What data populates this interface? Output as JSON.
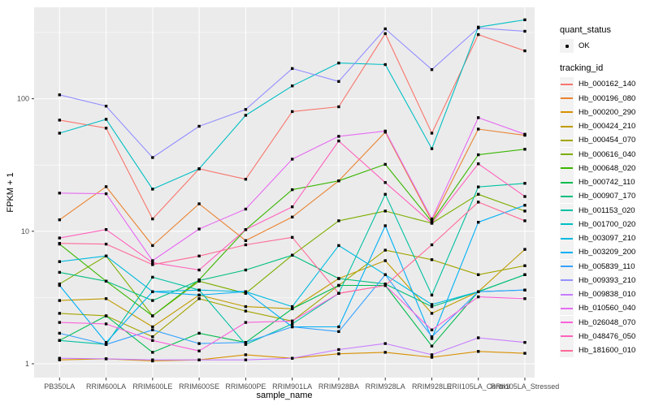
{
  "figure": {
    "background": "#FFFFFF"
  },
  "style": {
    "panel_bg": "#EBEBEB",
    "grid_color": "#FFFFFF",
    "axis_text_color": "#4D4D4D",
    "tick_color": "#333333",
    "legend_key_bg": "#F2F2F2",
    "point_color": "#000000"
  },
  "legend": {
    "quant_status": {
      "title": "quant_status",
      "items": [
        {
          "label": "OK",
          "symbol": "black-point"
        }
      ]
    },
    "tracking_id": {
      "title": "tracking_id"
    }
  },
  "chart_data": {
    "type": "line",
    "title": "",
    "xlabel": "sample_name",
    "ylabel": "FPKM + 1",
    "x_type": "categorical",
    "y_scale": "log10",
    "y_ticks": [
      1,
      10,
      100
    ],
    "y_minor_ticks": [
      3.1623,
      31.623,
      316.23
    ],
    "ylim": [
      0.82,
      490
    ],
    "grid": "on",
    "legend_position": "right",
    "point_shape": "filled-square",
    "point_color": "#000000",
    "categories": [
      "PB350LA",
      "RRIM600LA",
      "RRIM600LE",
      "RRIM600SE",
      "RRIM600PE",
      "RRIM901LA",
      "RRIM928BA",
      "RRIM928LA",
      "RRIM928LE",
      "RRII105LA_Control",
      "RRII105LA_Stressed"
    ],
    "series": [
      {
        "name": "Hb_000162_140",
        "color": "#F8766D",
        "values": [
          69,
          60,
          12.4,
          29.6,
          24.7,
          80,
          87,
          310,
          55,
          305,
          230
        ]
      },
      {
        "name": "Hb_000196_080",
        "color": "#EA8331",
        "values": [
          12.2,
          21.7,
          7.8,
          16.1,
          8.5,
          12.8,
          24,
          56,
          12,
          59,
          53
        ]
      },
      {
        "name": "Hb_000200_290",
        "color": "#D89000",
        "values": [
          1.07,
          1.09,
          1.05,
          1.07,
          1.17,
          1.1,
          1.19,
          1.22,
          1.12,
          1.24,
          1.2
        ]
      },
      {
        "name": "Hb_000424_210",
        "color": "#C09B00",
        "values": [
          3.0,
          3.1,
          1.9,
          3.3,
          2.7,
          2.6,
          4.4,
          6.0,
          2.4,
          3.5,
          7.3
        ]
      },
      {
        "name": "Hb_000454_070",
        "color": "#A3A500",
        "values": [
          2.4,
          2.3,
          1.6,
          3.1,
          2.5,
          2.1,
          3.9,
          7.2,
          6.1,
          4.7,
          5.5
        ]
      },
      {
        "name": "Hb_000616_040",
        "color": "#7CAE00",
        "values": [
          4.0,
          6.5,
          2.3,
          4.2,
          3.4,
          6.6,
          12,
          14.2,
          11.5,
          19,
          14.2
        ]
      },
      {
        "name": "Hb_000648_020",
        "color": "#39B600",
        "values": [
          8.0,
          4.2,
          2.3,
          4.3,
          10.3,
          20.6,
          24,
          32,
          11.8,
          37.8,
          41.6
        ]
      },
      {
        "name": "Hb_000742_110",
        "color": "#00BB4E",
        "values": [
          1.5,
          2.3,
          1.22,
          1.7,
          1.45,
          2.6,
          3.9,
          3.9,
          1.36,
          3.5,
          4.7
        ]
      },
      {
        "name": "Hb_000907_170",
        "color": "#00BF7D",
        "values": [
          4.9,
          4.2,
          3.0,
          4.25,
          5.1,
          6.6,
          4.4,
          4.0,
          2.7,
          3.5,
          4.7
        ]
      },
      {
        "name": "Hb_001153_020",
        "color": "#00C1A3",
        "values": [
          1.5,
          1.4,
          4.5,
          3.6,
          1.4,
          2.0,
          3.4,
          19,
          3.3,
          21.6,
          23
        ]
      },
      {
        "name": "Hb_001700_020",
        "color": "#00BFC4",
        "values": [
          55,
          70,
          20.8,
          29.6,
          75,
          125,
          186,
          181,
          42,
          347,
          394
        ]
      },
      {
        "name": "Hb_003097_210",
        "color": "#00BAE0",
        "values": [
          5.9,
          6.5,
          3.5,
          3.6,
          3.5,
          2.7,
          7.8,
          4.7,
          2.8,
          3.5,
          3.6
        ]
      },
      {
        "name": "Hb_003209_200",
        "color": "#00B0F6",
        "values": [
          3.9,
          1.45,
          3.5,
          3.3,
          3.5,
          1.9,
          1.9,
          11,
          1.55,
          11.7,
          15.7
        ]
      },
      {
        "name": "Hb_005839_110",
        "color": "#35A2FF",
        "values": [
          1.7,
          1.4,
          1.8,
          1.42,
          1.45,
          1.9,
          1.75,
          4.7,
          1.6,
          3.5,
          3.6
        ]
      },
      {
        "name": "Hb_009393_210",
        "color": "#9590FF",
        "values": [
          107,
          88,
          36,
          62,
          83,
          169,
          135,
          337,
          166,
          342,
          323
        ]
      },
      {
        "name": "Hb_009838_010",
        "color": "#C77CFF",
        "values": [
          1.1,
          1.09,
          1.07,
          1.07,
          1.07,
          1.1,
          1.28,
          1.42,
          1.17,
          1.57,
          1.45
        ]
      },
      {
        "name": "Hb_010560_040",
        "color": "#E76BF3",
        "values": [
          19.4,
          19.2,
          6.0,
          10.4,
          14.7,
          35,
          52,
          57,
          12.4,
          72,
          54
        ]
      },
      {
        "name": "Hb_026048_070",
        "color": "#FA62DB",
        "values": [
          2.05,
          2.0,
          1.5,
          1.25,
          2.05,
          2.1,
          3.4,
          3.9,
          1.8,
          3.2,
          3.1
        ]
      },
      {
        "name": "Hb_048476_050",
        "color": "#FF62BC",
        "values": [
          8.9,
          10.3,
          5.8,
          5.1,
          10.3,
          15.3,
          48,
          23.3,
          11.5,
          32.3,
          18.3
        ]
      },
      {
        "name": "Hb_181600_010",
        "color": "#FF6A98",
        "values": [
          8.1,
          8.0,
          5.6,
          6.5,
          7.9,
          9.0,
          3.4,
          3.9,
          7.9,
          16.6,
          12
        ]
      }
    ]
  }
}
